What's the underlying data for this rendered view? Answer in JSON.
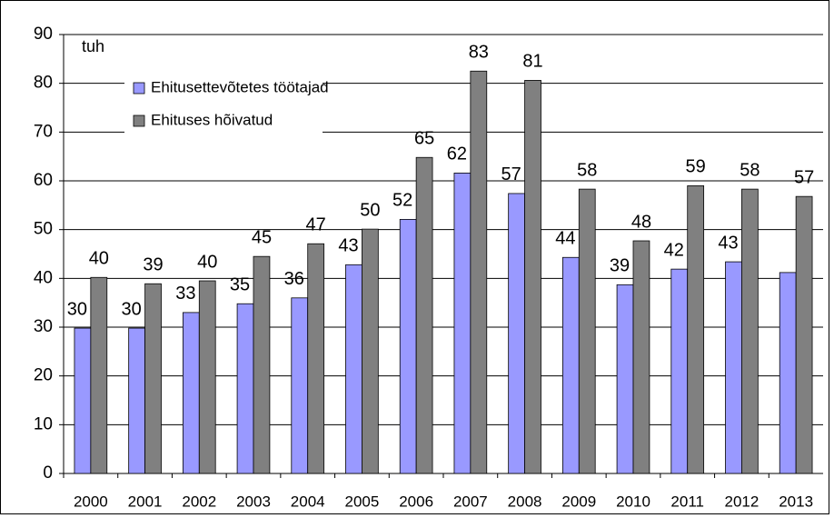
{
  "chart_data": {
    "type": "bar",
    "annotation": "tuh",
    "categories": [
      "2000",
      "2001",
      "2002",
      "2003",
      "2004",
      "2005",
      "2006",
      "2007",
      "2008",
      "2009",
      "2010",
      "2011",
      "2012",
      "2013"
    ],
    "series": [
      {
        "name": "Ehitusettevõtetes töötajad",
        "color": "#9999ff",
        "values": [
          29.8,
          29.8,
          33,
          34.8,
          36,
          42.8,
          52.1,
          61.6,
          57.4,
          44.3,
          38.7,
          41.9,
          43.4,
          41.2
        ],
        "value_labels": [
          "30",
          "30",
          "33",
          "35",
          "36",
          "43",
          "52",
          "62",
          "57",
          "44",
          "39",
          "42",
          "43",
          null
        ]
      },
      {
        "name": "Ehituses hõivatud",
        "color": "#808080",
        "values": [
          40.2,
          38.9,
          39.5,
          44.5,
          47.1,
          50.1,
          64.8,
          82.5,
          80.6,
          58.3,
          47.7,
          59,
          58.3,
          56.8
        ],
        "value_labels": [
          "40",
          "39",
          "40",
          "45",
          "47",
          "50",
          "65",
          "83",
          "81",
          "58",
          "48",
          "59",
          "58",
          "57"
        ]
      }
    ],
    "ylim": [
      0,
      90
    ],
    "yticks": [
      0,
      10,
      20,
      30,
      40,
      50,
      60,
      70,
      80,
      90
    ],
    "grid": true,
    "legend": "top-left"
  }
}
